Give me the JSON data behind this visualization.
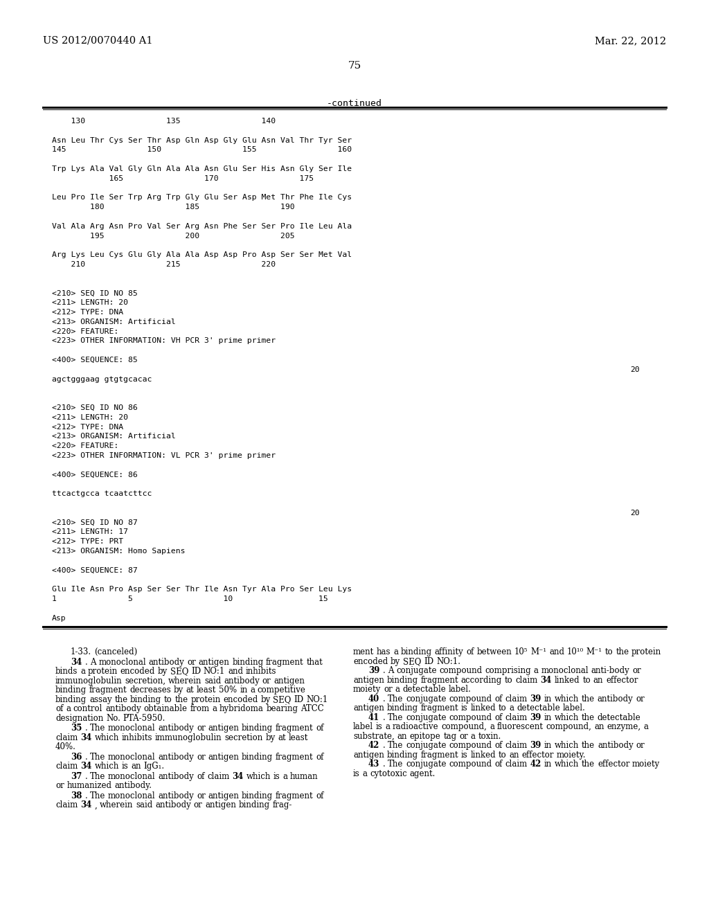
{
  "background_color": "#ffffff",
  "header_left": "US 2012/0070440 A1",
  "header_right": "Mar. 22, 2012",
  "page_number": "75",
  "continued_label": "-continued",
  "sequence_lines": [
    "    130                 135                 140",
    "",
    "Asn Leu Thr Cys Ser Thr Asp Gln Asp Gly Glu Asn Val Thr Tyr Ser",
    "145                 150                 155                 160",
    "",
    "Trp Lys Ala Val Gly Gln Ala Ala Asn Glu Ser His Asn Gly Ser Ile",
    "            165                 170                 175",
    "",
    "Leu Pro Ile Ser Trp Arg Trp Gly Glu Ser Asp Met Thr Phe Ile Cys",
    "        180                 185                 190",
    "",
    "Val Ala Arg Asn Pro Val Ser Arg Asn Phe Ser Ser Pro Ile Leu Ala",
    "        195                 200                 205",
    "",
    "Arg Lys Leu Cys Glu Gly Ala Ala Asp Asp Pro Asp Ser Ser Met Val",
    "    210                 215                 220",
    "",
    "",
    "<210> SEQ ID NO 85",
    "<211> LENGTH: 20",
    "<212> TYPE: DNA",
    "<213> ORGANISM: Artificial",
    "<220> FEATURE:",
    "<223> OTHER INFORMATION: VH PCR 3' prime primer",
    "",
    "<400> SEQUENCE: 85",
    "",
    "agctgggaag gtgtgcacac",
    "",
    "",
    "<210> SEQ ID NO 86",
    "<211> LENGTH: 20",
    "<212> TYPE: DNA",
    "<213> ORGANISM: Artificial",
    "<220> FEATURE:",
    "<223> OTHER INFORMATION: VL PCR 3' prime primer",
    "",
    "<400> SEQUENCE: 86",
    "",
    "ttcactgcca tcaatcttcc",
    "",
    "",
    "<210> SEQ ID NO 87",
    "<211> LENGTH: 17",
    "<212> TYPE: PRT",
    "<213> ORGANISM: Homo Sapiens",
    "",
    "<400> SEQUENCE: 87",
    "",
    "Glu Ile Asn Pro Asp Ser Ser Thr Ile Asn Tyr Ala Pro Ser Leu Lys",
    "1               5                   10                  15",
    "",
    "Asp"
  ],
  "seq_number_lines": [
    26,
    41
  ],
  "seq_number_values": [
    "20",
    "20"
  ],
  "claims_col1_paragraphs": [
    {
      "indent": true,
      "parts": [
        {
          "bold": false,
          "text": "1-33. (canceled)"
        }
      ]
    },
    {
      "indent": true,
      "parts": [
        {
          "bold": true,
          "text": "34"
        },
        {
          "bold": false,
          "text": ". A monoclonal antibody or antigen binding fragment that binds a protein encoded by SEQ ID NO:1 and inhibits immunoglobulin secretion, wherein said antibody or antigen binding fragment decreases by at least 50% in a competitive binding assay the binding to the protein encoded by SEQ ID NO:1 of a control antibody obtainable from a hybridoma bearing ATCC designation No. PTA-5950."
        }
      ]
    },
    {
      "indent": true,
      "parts": [
        {
          "bold": true,
          "text": "35"
        },
        {
          "bold": false,
          "text": ". The monoclonal antibody or antigen binding fragment of claim "
        },
        {
          "bold": true,
          "text": "34"
        },
        {
          "bold": false,
          "text": " which inhibits immunoglobulin secretion by at least 40%."
        }
      ]
    },
    {
      "indent": true,
      "parts": [
        {
          "bold": true,
          "text": "36"
        },
        {
          "bold": false,
          "text": ". The monoclonal antibody or antigen binding fragment of claim "
        },
        {
          "bold": true,
          "text": "34"
        },
        {
          "bold": false,
          "text": " which is an IgG₁."
        }
      ]
    },
    {
      "indent": true,
      "parts": [
        {
          "bold": true,
          "text": "37"
        },
        {
          "bold": false,
          "text": ". The monoclonal antibody of claim "
        },
        {
          "bold": true,
          "text": "34"
        },
        {
          "bold": false,
          "text": " which is a human or humanized antibody."
        }
      ]
    },
    {
      "indent": true,
      "parts": [
        {
          "bold": true,
          "text": "38"
        },
        {
          "bold": false,
          "text": ". The monoclonal antibody or antigen binding fragment of claim "
        },
        {
          "bold": true,
          "text": "34"
        },
        {
          "bold": false,
          "text": ", wherein said antibody or antigen binding frag-"
        }
      ]
    }
  ],
  "claims_col2_paragraphs": [
    {
      "indent": false,
      "parts": [
        {
          "bold": false,
          "text": "ment has a binding affinity of between 10⁵ M⁻¹ and 10¹⁰ M⁻¹ to the protein encoded by SEQ ID NO:1."
        }
      ]
    },
    {
      "indent": true,
      "parts": [
        {
          "bold": true,
          "text": "39"
        },
        {
          "bold": false,
          "text": ". A conjugate compound comprising a monoclonal anti-body or antigen binding fragment according to claim "
        },
        {
          "bold": true,
          "text": "34"
        },
        {
          "bold": false,
          "text": " linked to an effector moiety or a detectable label."
        }
      ]
    },
    {
      "indent": true,
      "parts": [
        {
          "bold": true,
          "text": "40"
        },
        {
          "bold": false,
          "text": ". The conjugate compound of claim "
        },
        {
          "bold": true,
          "text": "39"
        },
        {
          "bold": false,
          "text": " in which the antibody or antigen binding fragment is linked to a detectable label."
        }
      ]
    },
    {
      "indent": true,
      "parts": [
        {
          "bold": true,
          "text": "41"
        },
        {
          "bold": false,
          "text": ". The conjugate compound of claim "
        },
        {
          "bold": true,
          "text": "39"
        },
        {
          "bold": false,
          "text": " in which the detectable label is a radioactive compound, a fluorescent compound, an enzyme, a substrate, an epitope tag or a toxin."
        }
      ]
    },
    {
      "indent": true,
      "parts": [
        {
          "bold": true,
          "text": "42"
        },
        {
          "bold": false,
          "text": ". The conjugate compound of claim "
        },
        {
          "bold": true,
          "text": "39"
        },
        {
          "bold": false,
          "text": " in which the antibody or antigen binding fragment is linked to an effector moiety."
        }
      ]
    },
    {
      "indent": true,
      "parts": [
        {
          "bold": true,
          "text": "43"
        },
        {
          "bold": false,
          "text": ". The conjugate compound of claim "
        },
        {
          "bold": true,
          "text": "42"
        },
        {
          "bold": false,
          "text": " in which the effector moiety is a cytotoxic agent."
        }
      ]
    }
  ]
}
